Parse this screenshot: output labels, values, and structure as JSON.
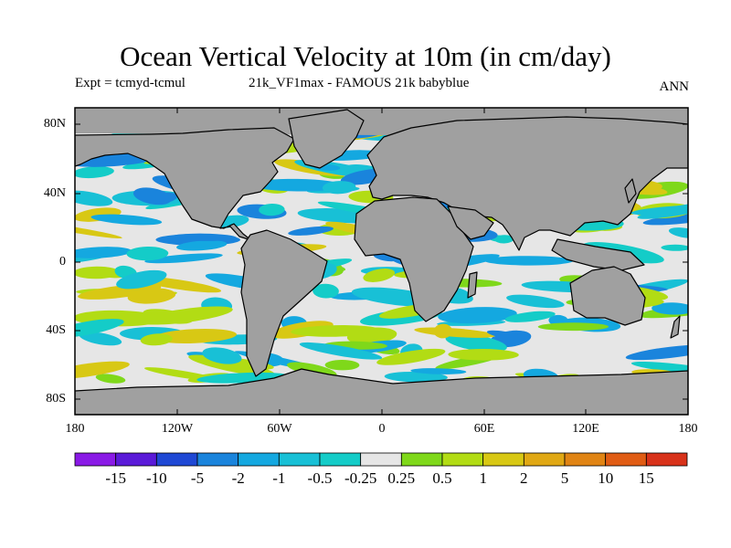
{
  "title": "Ocean Vertical Velocity at 10m (in cm/day)",
  "subtitle_left": "Expt = tcmyd-tcmul",
  "subtitle_mid": "21k_VF1max - FAMOUS 21k babyblue",
  "subtitle_right": "ANN",
  "lat_labels": [
    "80N",
    "40N",
    "0",
    "40S",
    "80S"
  ],
  "lon_labels": [
    "180",
    "120W",
    "60W",
    "0",
    "60E",
    "120E",
    "180"
  ],
  "colorbar": {
    "labels": [
      "-15",
      "-10",
      "-5",
      "-2",
      "-1",
      "-0.5",
      "-0.25",
      "0.25",
      "0.5",
      "1",
      "2",
      "5",
      "10",
      "15"
    ],
    "colors": [
      "#8a1ae6",
      "#5a1ad8",
      "#1f48d4",
      "#1a84dc",
      "#14a8e0",
      "#18c0d6",
      "#14ccc8",
      "#e6e6e6",
      "#7fd81a",
      "#b2dc14",
      "#d8c814",
      "#e0a814",
      "#e08414",
      "#e05c14",
      "#d8321a"
    ]
  },
  "colors": {
    "land": "#a0a0a0",
    "ocean_neutral": "#e6e6e6",
    "coast": "#000000"
  }
}
